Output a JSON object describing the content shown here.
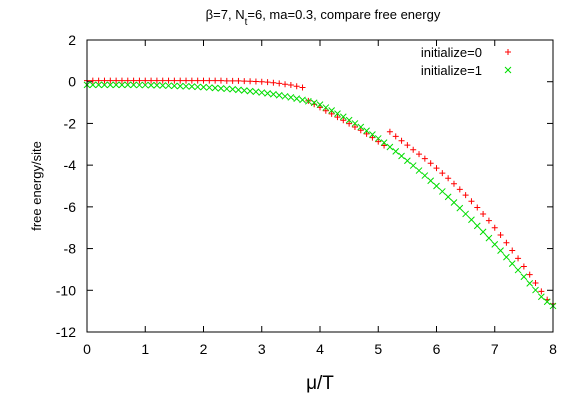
{
  "chart_data": {
    "type": "scatter",
    "title": {
      "pre": "β=7, N",
      "sub": "t",
      "post": "=6, ma=0.3, compare free energy"
    },
    "xlabel": "μ/T",
    "ylabel": "free energy/site",
    "xlim": [
      0,
      8
    ],
    "ylim": [
      -12,
      2
    ],
    "xticks": [
      "0",
      "1",
      "2",
      "3",
      "4",
      "5",
      "6",
      "7",
      "8"
    ],
    "yticks": [
      "2",
      "0",
      "-2",
      "-4",
      "-6",
      "-8",
      "-10",
      "-12"
    ],
    "legend_position": "top-right",
    "series": [
      {
        "name": "initialize=0",
        "color": "#ff0000",
        "marker": "plus",
        "x": [
          0.0,
          0.1,
          0.2,
          0.3,
          0.4,
          0.5,
          0.6,
          0.7,
          0.8,
          0.9,
          1.0,
          1.1,
          1.2,
          1.3,
          1.4,
          1.5,
          1.6,
          1.7,
          1.8,
          1.9,
          2.0,
          2.1,
          2.2,
          2.3,
          2.4,
          2.5,
          2.6,
          2.7,
          2.8,
          2.9,
          3.0,
          3.1,
          3.2,
          3.3,
          3.4,
          3.5,
          3.6,
          3.7,
          3.8,
          3.9,
          4.0,
          4.1,
          4.2,
          4.3,
          4.4,
          4.5,
          4.6,
          4.7,
          4.8,
          4.9,
          5.0,
          5.1,
          5.2,
          5.3,
          5.4,
          5.5,
          5.6,
          5.7,
          5.8,
          5.9,
          6.0,
          6.1,
          6.2,
          6.3,
          6.4,
          6.5,
          6.6,
          6.7,
          6.8,
          6.9,
          7.0,
          7.1,
          7.2,
          7.3,
          7.4,
          7.5,
          7.6,
          7.7,
          7.8,
          7.9,
          8.0
        ],
        "y": [
          0.05,
          0.05,
          0.05,
          0.05,
          0.05,
          0.05,
          0.05,
          0.05,
          0.05,
          0.05,
          0.05,
          0.05,
          0.05,
          0.05,
          0.05,
          0.05,
          0.05,
          0.05,
          0.05,
          0.05,
          0.05,
          0.05,
          0.05,
          0.05,
          0.04,
          0.04,
          0.04,
          0.03,
          0.02,
          0.01,
          0.0,
          -0.02,
          -0.05,
          -0.08,
          -0.12,
          -0.16,
          -0.22,
          -0.28,
          -0.92,
          -1.08,
          -1.23,
          -1.39,
          -1.54,
          -1.7,
          -1.85,
          -2.01,
          -2.17,
          -2.33,
          -2.5,
          -2.68,
          -2.87,
          -3.06,
          -2.4,
          -2.62,
          -2.83,
          -3.04,
          -3.26,
          -3.47,
          -3.69,
          -3.91,
          -4.14,
          -4.38,
          -4.63,
          -4.89,
          -5.16,
          -5.44,
          -5.73,
          -6.03,
          -6.34,
          -6.66,
          -7.0,
          -7.35,
          -7.72,
          -8.09,
          -8.47,
          -8.86,
          -9.25,
          -9.65,
          -10.05,
          -10.45,
          -10.65
        ]
      },
      {
        "name": "initialize=1",
        "color": "#00dd00",
        "marker": "cross",
        "x": [
          0.0,
          0.1,
          0.2,
          0.3,
          0.4,
          0.5,
          0.6,
          0.7,
          0.8,
          0.9,
          1.0,
          1.1,
          1.2,
          1.3,
          1.4,
          1.5,
          1.6,
          1.7,
          1.8,
          1.9,
          2.0,
          2.1,
          2.2,
          2.3,
          2.4,
          2.5,
          2.6,
          2.7,
          2.8,
          2.9,
          3.0,
          3.1,
          3.2,
          3.3,
          3.4,
          3.5,
          3.6,
          3.7,
          3.8,
          3.9,
          4.0,
          4.1,
          4.2,
          4.3,
          4.4,
          4.5,
          4.6,
          4.7,
          4.8,
          4.9,
          5.0,
          5.1,
          5.2,
          5.3,
          5.4,
          5.5,
          5.6,
          5.7,
          5.8,
          5.9,
          6.0,
          6.1,
          6.2,
          6.3,
          6.4,
          6.5,
          6.6,
          6.7,
          6.8,
          6.9,
          7.0,
          7.1,
          7.2,
          7.3,
          7.4,
          7.5,
          7.6,
          7.7,
          7.8,
          7.9,
          8.0
        ],
        "y": [
          -0.15,
          -0.15,
          -0.15,
          -0.15,
          -0.15,
          -0.15,
          -0.15,
          -0.15,
          -0.15,
          -0.16,
          -0.16,
          -0.17,
          -0.17,
          -0.18,
          -0.19,
          -0.2,
          -0.21,
          -0.22,
          -0.23,
          -0.25,
          -0.26,
          -0.28,
          -0.3,
          -0.32,
          -0.34,
          -0.36,
          -0.39,
          -0.42,
          -0.45,
          -0.48,
          -0.52,
          -0.56,
          -0.6,
          -0.65,
          -0.7,
          -0.75,
          -0.81,
          -0.87,
          -0.94,
          -1.01,
          -1.1,
          -1.24,
          -1.38,
          -1.53,
          -1.68,
          -1.84,
          -2.0,
          -2.17,
          -2.35,
          -2.53,
          -2.72,
          -2.92,
          -3.13,
          -3.34,
          -3.56,
          -3.79,
          -4.02,
          -4.26,
          -4.5,
          -4.75,
          -5.0,
          -5.26,
          -5.52,
          -5.79,
          -6.06,
          -6.34,
          -6.62,
          -6.91,
          -7.2,
          -7.5,
          -7.8,
          -8.1,
          -8.41,
          -8.72,
          -9.03,
          -9.35,
          -9.67,
          -9.99,
          -10.31,
          -10.55,
          -10.75
        ]
      }
    ]
  }
}
